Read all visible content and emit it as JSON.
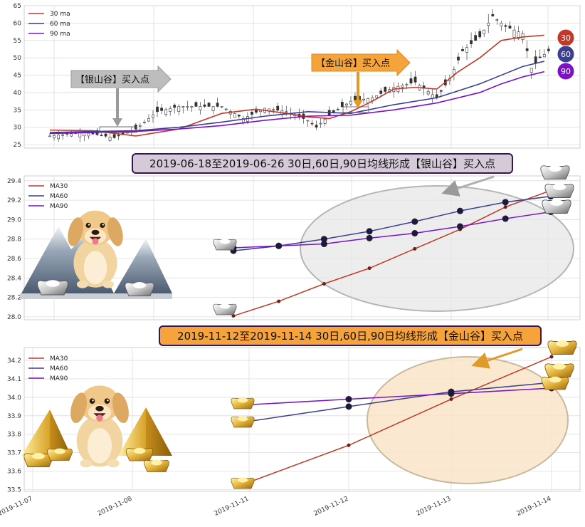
{
  "colors": {
    "ma30": "#c0392b",
    "ma60": "#3b3f8f",
    "ma90": "#7b12c4",
    "silver_box": "#bdbdbd",
    "gold_box": "#f4a43a",
    "banner_silver": "#d5cbd8",
    "banner_gold": "#f5a33a",
    "badge30": "#c0392b",
    "badge60": "#3b3f8f",
    "badge90": "#7b12c4"
  },
  "top_panel": {
    "legend": [
      "30 ma",
      "60 ma",
      "90 ma"
    ],
    "silver_label": "【银山谷】买入点",
    "gold_label": "【金山谷】买入点",
    "badges": [
      "30",
      "60",
      "90"
    ]
  },
  "mid_panel": {
    "banner": "2019-06-18至2019-06-26 30日,60日,90日均线形成【银山谷】买入点",
    "legend": [
      "MA30",
      "MA60",
      "MA90"
    ]
  },
  "bottom_panel": {
    "banner": "2019-11-12至2019-11-14 30日,60日,90日均线形成【金山谷】买入点",
    "legend": [
      "MA30",
      "MA60",
      "MA90"
    ]
  },
  "chart_data": [
    {
      "type": "line",
      "panel": "top",
      "ylim": [
        24,
        65
      ],
      "yticks": [
        25,
        30,
        35,
        40,
        45,
        50,
        55,
        60,
        65
      ],
      "n": 120,
      "series": [
        {
          "name": "30 ma",
          "x": [
            0,
            10,
            20,
            30,
            40,
            48,
            55,
            60,
            65,
            70,
            75,
            80,
            85,
            90,
            95,
            100,
            105,
            110,
            115
          ],
          "values": [
            29.2,
            29.0,
            27.5,
            29.5,
            34,
            35.2,
            34.0,
            33.0,
            32.5,
            34.5,
            37.5,
            41,
            41.5,
            41,
            46,
            50,
            55,
            56,
            56.5
          ]
        },
        {
          "name": "60 ma",
          "x": [
            0,
            10,
            20,
            30,
            40,
            50,
            60,
            70,
            80,
            90,
            100,
            105,
            110,
            115
          ],
          "values": [
            28.5,
            28.8,
            29.0,
            30,
            31.5,
            33.2,
            34.5,
            34.0,
            36.5,
            38.5,
            42.5,
            45,
            47.5,
            49
          ]
        },
        {
          "name": "90 ma",
          "x": [
            0,
            10,
            20,
            30,
            40,
            50,
            60,
            70,
            80,
            90,
            100,
            105,
            110,
            115
          ],
          "values": [
            28.2,
            28.5,
            28.8,
            29.5,
            30.5,
            32.0,
            33.2,
            33.5,
            35.0,
            37.0,
            40.0,
            42.5,
            44.5,
            46
          ]
        }
      ],
      "candle_envelope": {
        "x": [
          0,
          8,
          15,
          20,
          25,
          30,
          40,
          45,
          50,
          55,
          60,
          62,
          65,
          70,
          75,
          80,
          85,
          90,
          93,
          96,
          100,
          103,
          106,
          108,
          110,
          112,
          114,
          116
        ],
        "close": [
          27.5,
          28.5,
          27.0,
          29.5,
          34.5,
          36.0,
          36.0,
          32.5,
          35.5,
          34.5,
          32.0,
          30.0,
          33.5,
          37.5,
          38.5,
          41.5,
          43.0,
          38.5,
          44.0,
          52.0,
          56.0,
          62.0,
          59.0,
          58.0,
          57.0,
          47.0,
          50.0,
          52.0
        ]
      }
    },
    {
      "type": "line",
      "panel": "middle",
      "ylim": [
        27.97,
        29.45
      ],
      "yticks": [
        28.0,
        28.2,
        28.4,
        28.6,
        28.8,
        29.0,
        29.2,
        29.4
      ],
      "series": [
        {
          "name": "MA30",
          "x": [
            0,
            1,
            2,
            3,
            4,
            5,
            6,
            7
          ],
          "values": [
            28.01,
            28.16,
            28.34,
            28.5,
            28.7,
            28.9,
            29.13,
            29.3
          ]
        },
        {
          "name": "MA60",
          "x": [
            0,
            1,
            2,
            3,
            4,
            5,
            6,
            7
          ],
          "values": [
            28.68,
            28.73,
            28.8,
            28.88,
            28.98,
            29.09,
            29.18,
            29.24
          ]
        },
        {
          "name": "MA90",
          "x": [
            0,
            1,
            2,
            3,
            4,
            5,
            6,
            7
          ],
          "values": [
            28.71,
            28.73,
            28.75,
            28.81,
            28.86,
            28.93,
            29.01,
            29.08
          ]
        }
      ]
    },
    {
      "type": "line",
      "panel": "bottom",
      "ylim": [
        33.49,
        34.27
      ],
      "yticks": [
        33.5,
        33.6,
        33.7,
        33.8,
        33.9,
        34.0,
        34.1,
        34.2
      ],
      "categories": [
        "2019-11-07",
        "2019-11-08",
        "2019-11-11",
        "2019-11-12",
        "2019-11-13",
        "2019-11-14"
      ],
      "series": [
        {
          "name": "MA30",
          "x": [
            2,
            3,
            4,
            5
          ],
          "values": [
            33.54,
            33.74,
            33.99,
            34.22
          ]
        },
        {
          "name": "MA60",
          "x": [
            2,
            3,
            4,
            5
          ],
          "values": [
            33.87,
            33.95,
            34.03,
            34.08
          ]
        },
        {
          "name": "MA90",
          "x": [
            2,
            3,
            4,
            5
          ],
          "values": [
            33.96,
            33.99,
            34.02,
            34.05
          ]
        }
      ]
    }
  ]
}
